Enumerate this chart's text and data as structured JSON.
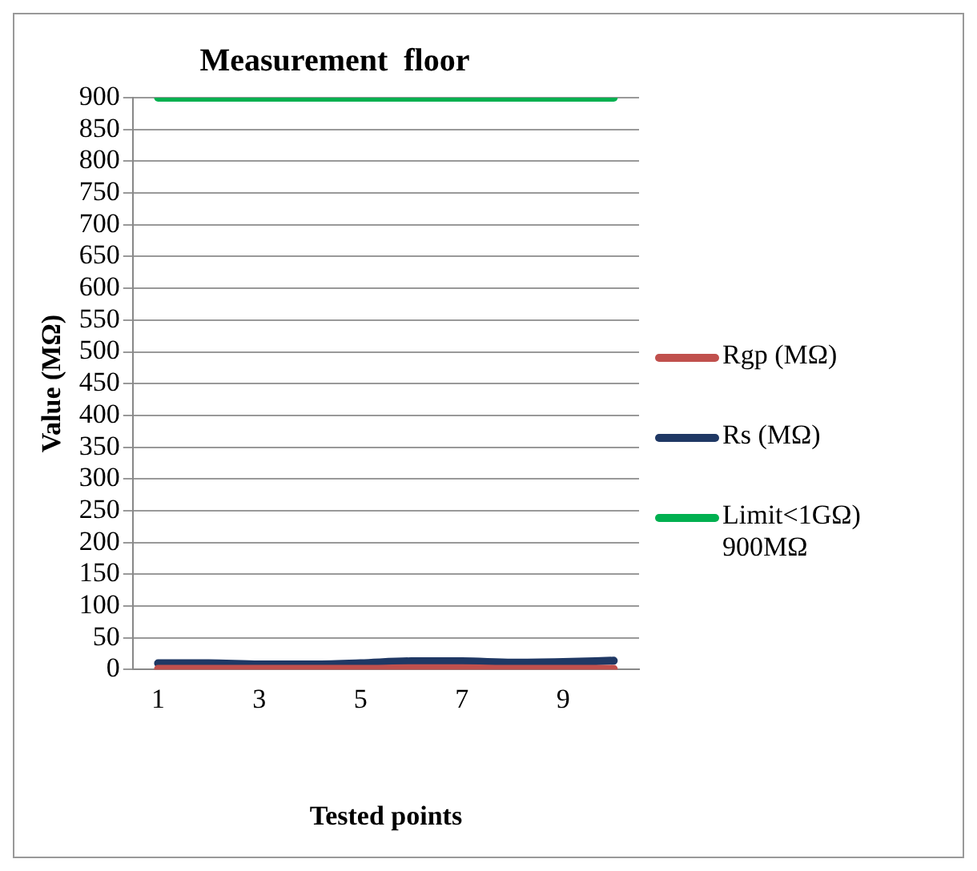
{
  "chart_data": {
    "type": "line",
    "title": "Measurement  floor",
    "xlabel": "Tested points",
    "ylabel": "Value (MΩ)",
    "categories": [
      "1",
      null,
      "3",
      null,
      "5",
      null,
      "7",
      null,
      "9",
      null
    ],
    "series": [
      {
        "name": "Rgp (MΩ)",
        "color": "#c0504d",
        "values": [
          1,
          1,
          1,
          1,
          1,
          2,
          2,
          1,
          1,
          1
        ]
      },
      {
        "name": "Rs (MΩ)",
        "color": "#1f3864",
        "values": [
          10,
          10,
          8,
          8,
          10,
          13,
          13,
          11,
          12,
          14
        ]
      },
      {
        "name": "Limit<1GΩ) 900MΩ",
        "color": "#00b050",
        "values": [
          900,
          900,
          900,
          900,
          900,
          900,
          900,
          900,
          900,
          900
        ]
      }
    ],
    "ylim": [
      0,
      900
    ],
    "yticks": [
      0,
      50,
      100,
      150,
      200,
      250,
      300,
      350,
      400,
      450,
      500,
      550,
      600,
      650,
      700,
      750,
      800,
      850,
      900
    ],
    "grid": "y",
    "legend": "right",
    "marker": "none",
    "line_style": "solid"
  }
}
